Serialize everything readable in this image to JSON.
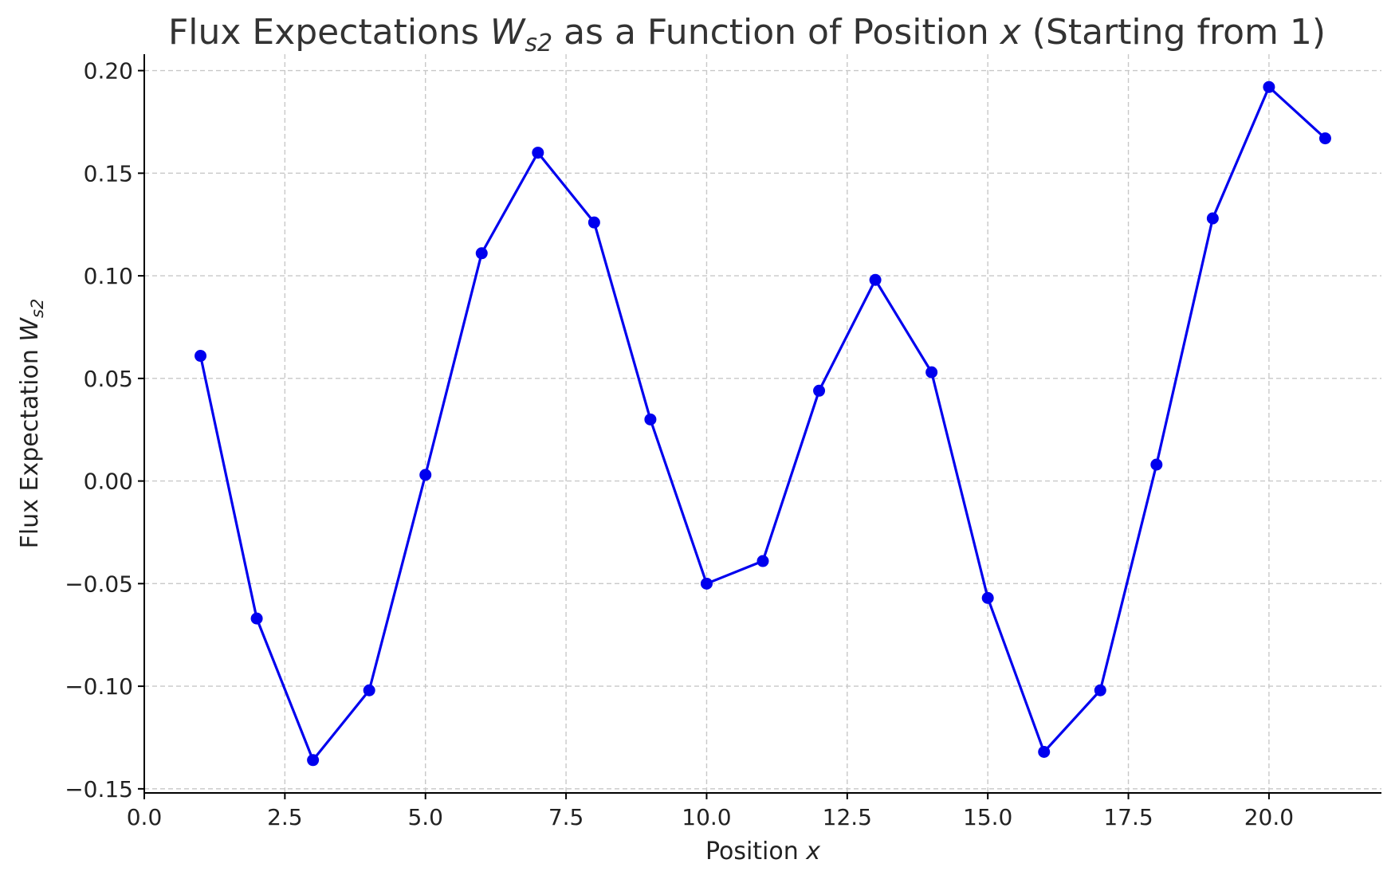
{
  "chart_data": {
    "type": "line",
    "title_parts": {
      "pre": "Flux Expectations ",
      "sym": "W",
      "sub": "s2",
      "mid": " as a Function of Position ",
      "var": "x",
      "post": " (Starting from 1)"
    },
    "xlabel_parts": {
      "pre": "Position ",
      "var": "x"
    },
    "ylabel_parts": {
      "pre": "Flux Expectation ",
      "sym": "W",
      "sub": "s2"
    },
    "x": [
      1,
      2,
      3,
      4,
      5,
      6,
      7,
      8,
      9,
      10,
      11,
      12,
      13,
      14,
      15,
      16,
      17,
      18,
      19,
      20,
      21
    ],
    "series": [
      {
        "values": [
          0.061,
          -0.067,
          -0.136,
          -0.102,
          0.003,
          0.111,
          0.16,
          0.126,
          0.03,
          -0.05,
          -0.039,
          0.044,
          0.098,
          0.053,
          -0.057,
          -0.132,
          -0.102,
          0.008,
          0.128,
          0.192,
          0.167
        ],
        "color": "#0000ee",
        "marker": "circle"
      }
    ],
    "xlim": [
      0,
      22
    ],
    "ylim": [
      -0.152,
      0.208
    ],
    "xticks": [
      0.0,
      2.5,
      5.0,
      7.5,
      10.0,
      12.5,
      15.0,
      17.5,
      20.0
    ],
    "xtick_labels": [
      "0.0",
      "2.5",
      "5.0",
      "7.5",
      "10.0",
      "12.5",
      "15.0",
      "17.5",
      "20.0"
    ],
    "yticks": [
      -0.15,
      -0.1,
      -0.05,
      0.0,
      0.05,
      0.1,
      0.15,
      0.2
    ],
    "ytick_labels": [
      "−0.15",
      "−0.10",
      "−0.05",
      "0.00",
      "0.05",
      "0.10",
      "0.15",
      "0.20"
    ],
    "grid": true,
    "legend": "none"
  }
}
